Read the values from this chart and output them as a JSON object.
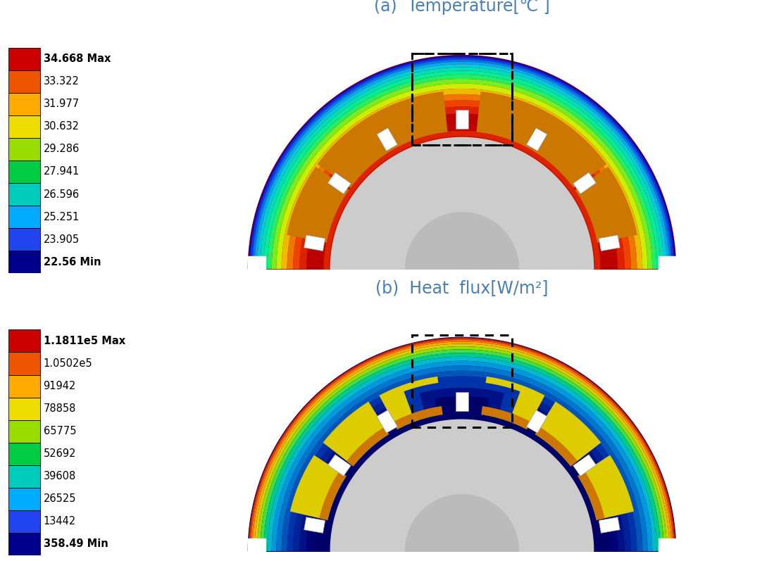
{
  "title_a": "(a)  Temperature[℃ ]",
  "title_b": "(b)  Heat  flux[W/m²]",
  "title_color": "#4a7fb5",
  "title_fontsize": 17,
  "temp_labels": [
    "34.668 Max",
    "33.322",
    "31.977",
    "30.632",
    "29.286",
    "27.941",
    "26.596",
    "25.251",
    "23.905",
    "22.56 Min"
  ],
  "flux_labels": [
    "1.1811e5 Max",
    "1.0502e5",
    "91942",
    "78858",
    "65775",
    "52692",
    "39608",
    "26525",
    "13442",
    "358.49 Min"
  ],
  "cbar_colors": [
    "#cc0000",
    "#ee5500",
    "#ffaa00",
    "#eedd00",
    "#99dd00",
    "#00cc44",
    "#00ccbb",
    "#00aaff",
    "#2244ee",
    "#00008b"
  ],
  "background": "#ffffff",
  "label_fontsize": 10.5,
  "fig_width": 10.99,
  "fig_height": 7.97
}
